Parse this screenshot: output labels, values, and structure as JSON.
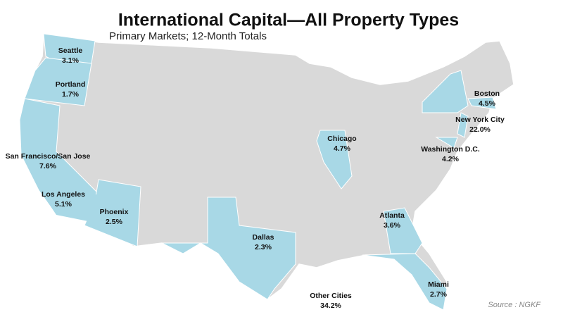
{
  "chart_data": {
    "type": "map",
    "title": "International Capital—All Property Types",
    "subtitle": "Primary Markets; 12-Month Totals",
    "categories": [
      "Seattle",
      "Portland",
      "San Francisco/San Jose",
      "Los Angeles",
      "Phoenix",
      "Dallas",
      "Chicago",
      "Atlanta",
      "Miami",
      "Boston",
      "New York City",
      "Washington D.C.",
      "Other Cities"
    ],
    "values": [
      3.1,
      1.7,
      7.6,
      5.1,
      2.5,
      2.3,
      4.7,
      3.6,
      2.7,
      4.5,
      22.0,
      4.2,
      34.2
    ],
    "value_labels": [
      "3.1%",
      "1.7%",
      "7.6%",
      "5.1%",
      "2.5%",
      "2.3%",
      "4.7%",
      "3.6%",
      "2.7%",
      "4.5%",
      "22.0%",
      "4.2%",
      "34.2%"
    ],
    "highlight_color": "#a8d8e6",
    "base_color": "#d9d9d9",
    "source": "Source : NGKF"
  }
}
